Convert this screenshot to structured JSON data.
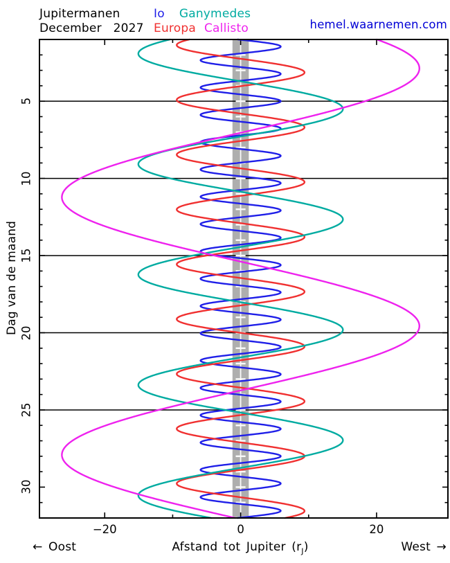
{
  "header": {
    "title_line1": "Jupitermanen",
    "title_line2": "December   2027",
    "website": "hemel.waarnemen.com"
  },
  "legend": {
    "io": "Io",
    "ganymedes": "Ganymedes",
    "europa": "Europa",
    "callisto": "Callisto"
  },
  "axes": {
    "y_title": "Dag van de maand",
    "x_title_prefix": "Afstand tot Jupiter (r",
    "x_title_sub": "J",
    "x_title_suffix": ")",
    "east_label": "← Oost",
    "west_label": "West →"
  },
  "chart_data": {
    "type": "line",
    "title": "Jupitermanen December 2027",
    "xlabel": "Afstand tot Jupiter (rJ)",
    "ylabel": "Dag van de maand",
    "xlim": [
      -29.6,
      30.5
    ],
    "ylim": [
      1,
      32
    ],
    "x_axis_direction": {
      "left": "Oost (East), negative rJ",
      "right": "West, positive rJ"
    },
    "x_ticks_major": [
      -20,
      0,
      20
    ],
    "x_ticks_minor": [
      -10,
      10
    ],
    "x_tick_labels": [
      "−20",
      "0",
      "20"
    ],
    "y_ticks_labeled": [
      5,
      10,
      15,
      20,
      25,
      30
    ],
    "y_gridline_days": [
      5,
      10,
      15,
      20,
      25
    ],
    "y_minor_tick_every_day": true,
    "grid_color": "#000000",
    "jupiter_band": {
      "half_width_rj": 1.2,
      "color": "#aeaeae",
      "center_line_color": "#fafafa",
      "day_dash_color": "#fafafa",
      "day_dash_half_width_rj": 0.72,
      "day_dash_days_from": 2,
      "day_dash_days_to": 31
    },
    "model": "x_rj(t_day) = amplitude_rj * sin(2*PI*(t_day - t0_day)/period_days)",
    "sample_step_days": 0.02,
    "series": [
      {
        "name": "Io",
        "color": "#1f1fe8",
        "amplitude_rj": 5.9,
        "period_days": 1.769,
        "t0_day": 1.02
      },
      {
        "name": "Europa",
        "color": "#f03030",
        "amplitude_rj": 9.4,
        "period_days": 3.551,
        "t0_day": 2.25
      },
      {
        "name": "Ganymedes",
        "color": "#00aba1",
        "amplitude_rj": 15.05,
        "period_days": 7.155,
        "t0_day": 3.71
      },
      {
        "name": "Callisto",
        "color": "#ee22ee",
        "amplitude_rj": 26.3,
        "period_days": 16.69,
        "t0_day": -1.3
      }
    ]
  }
}
